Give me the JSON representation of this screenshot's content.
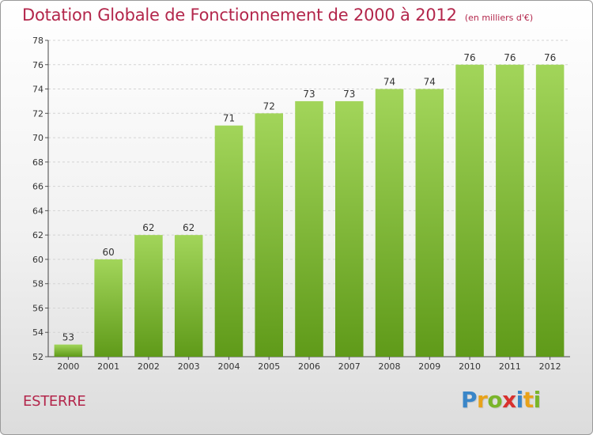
{
  "header": {
    "title": "Dotation Globale de Fonctionnement de 2000 à 2012",
    "subtitle": "(en milliers d'€)"
  },
  "footer": {
    "commune": "ESTERRE",
    "brand": [
      "P",
      "r",
      "o",
      "x",
      "i",
      "t",
      "i"
    ],
    "brand_colors": [
      "#3a86c8",
      "#e8a21a",
      "#7ab52a",
      "#d8312e",
      "#3a86c8",
      "#e8a21a",
      "#7ab52a"
    ]
  },
  "colors": {
    "bar_top": "#a2d55a",
    "bar_bottom": "#5f9a19",
    "accent": "#b3264b"
  },
  "chart_data": {
    "type": "bar",
    "categories": [
      "2000",
      "2001",
      "2002",
      "2003",
      "2004",
      "2005",
      "2006",
      "2007",
      "2008",
      "2009",
      "2010",
      "2011",
      "2012"
    ],
    "values": [
      53,
      60,
      62,
      62,
      71,
      72,
      73,
      73,
      74,
      74,
      76,
      76,
      76
    ],
    "ylim": [
      52,
      78
    ],
    "yticks": [
      52,
      54,
      56,
      58,
      60,
      62,
      64,
      66,
      68,
      70,
      72,
      74,
      76,
      78
    ],
    "grid": true,
    "data_labels": true
  }
}
